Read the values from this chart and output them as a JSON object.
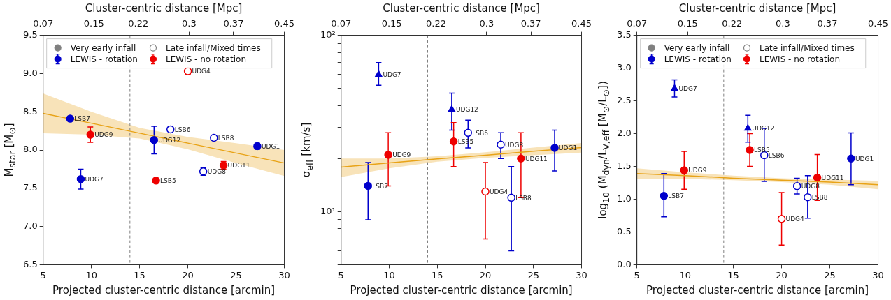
{
  "chart_data": [
    {
      "type": "scatter",
      "xlabel": "Projected cluster-centric distance [arcmin]",
      "x2label": "Cluster-centric distance [Mpc]",
      "ylabel": "M$_{star}$ [M$_{⊙}$]",
      "xlim": [
        5,
        30
      ],
      "xticks": [
        5,
        10,
        15,
        20,
        25,
        30
      ],
      "x2lim": [
        0.07,
        0.45
      ],
      "x2ticks": [
        0.07,
        0.15,
        0.22,
        0.3,
        0.37,
        0.45
      ],
      "ylim": [
        6.5,
        9.5
      ],
      "yticks": [
        6.5,
        {
          "value": 7,
          "label": "7.0"
        },
        7.5,
        {
          "value": 8,
          "label": "8.0"
        },
        8.5,
        {
          "value": 9,
          "label": "9.0"
        },
        9.5
      ],
      "legend": "top left",
      "series": [
        {
          "name": "Very early infall",
          "color": "#808080"
        },
        {
          "name": "LEWIS - rotation",
          "color": "#0000cc",
          "marker": "circle",
          "x": [
            7.8,
            8.9,
            16.5,
            27.2
          ],
          "values": [
            8.41,
            7.62,
            8.13,
            8.05
          ],
          "errors": [
            null,
            0.13,
            0.18,
            0.04
          ]
        },
        {
          "name": "Late infall/Mixed times",
          "color": "#808080",
          "marker": "circle-open"
        },
        {
          "name": "LEWIS - no rotation",
          "color": "#ee0000",
          "marker": "circle",
          "x": [
            9.9,
            16.7,
            23.7
          ],
          "values": [
            8.2,
            7.6,
            7.8
          ],
          "errors": [
            0.1,
            null,
            0.05
          ]
        },
        {
          "color": "#0000cc",
          "marker": "circle-open",
          "x": [
            18.2,
            21.6,
            22.7
          ],
          "values": [
            8.27,
            7.72,
            8.16
          ],
          "errors": [
            null,
            0.05,
            null
          ]
        },
        {
          "color": "#ee0000",
          "marker": "circle-open",
          "x": [
            20.0
          ],
          "values": [
            9.03
          ],
          "errors": [
            0.04
          ]
        },
        {
          "type": "line",
          "color": "#e8a317",
          "marker": "none",
          "x": [
            5,
            10,
            15,
            20,
            25,
            30
          ],
          "values": [
            8.48,
            8.35,
            8.22,
            8.09,
            7.96,
            7.83
          ],
          "lower": [
            8.22,
            8.2,
            8.15,
            8.01,
            7.83,
            7.66
          ],
          "upper": [
            8.74,
            8.5,
            8.29,
            8.17,
            8.09,
            8.0
          ]
        }
      ],
      "ref_lines": [
        {
          "axis": "x",
          "value": 14,
          "color": "#808080",
          "line_style": "dashed"
        }
      ],
      "annotations": [
        {
          "text": "LSB7",
          "x": 7.8,
          "y": 8.41
        },
        {
          "text": "UDG7",
          "x": 8.9,
          "y": 7.62
        },
        {
          "text": "UDG9",
          "x": 9.9,
          "y": 8.2
        },
        {
          "text": "UDG12",
          "x": 16.5,
          "y": 8.13
        },
        {
          "text": "LSB5",
          "x": 16.7,
          "y": 7.6
        },
        {
          "text": "LSB6",
          "x": 18.2,
          "y": 8.27
        },
        {
          "text": "UDG4",
          "x": 20.0,
          "y": 9.03
        },
        {
          "text": "UDG8",
          "x": 21.6,
          "y": 7.72
        },
        {
          "text": "LSB8",
          "x": 22.7,
          "y": 8.16
        },
        {
          "text": "UDG11",
          "x": 23.7,
          "y": 7.8
        },
        {
          "text": "UDG1",
          "x": 27.2,
          "y": 8.05
        }
      ]
    },
    {
      "type": "scatter",
      "xlabel": "Projected cluster-centric distance [arcmin]",
      "x2label": "Cluster-centric distance [Mpc]",
      "ylabel": "σ$_{eff}$ [km/s]",
      "log": "y",
      "xlim": [
        5,
        30
      ],
      "xticks": [
        5,
        10,
        15,
        20,
        25,
        30
      ],
      "x2lim": [
        0.07,
        0.45
      ],
      "x2ticks": [
        0.07,
        0.15,
        0.22,
        0.3,
        0.37,
        0.45
      ],
      "ylim": [
        5,
        100
      ],
      "yticks": [
        {
          "value": 5,
          "label": null
        },
        {
          "value": 6,
          "label": null
        },
        {
          "value": 7,
          "label": null
        },
        {
          "value": 8,
          "label": null
        },
        {
          "value": 9,
          "label": null
        },
        {
          "value": 10,
          "label": "10¹"
        },
        {
          "value": 20,
          "label": null
        },
        {
          "value": 30,
          "label": null
        },
        {
          "value": 40,
          "label": null
        },
        {
          "value": 50,
          "label": null
        },
        {
          "value": 60,
          "label": null
        },
        {
          "value": 70,
          "label": null
        },
        {
          "value": 80,
          "label": null
        },
        {
          "value": 90,
          "label": null
        },
        {
          "value": 100,
          "label": "10²"
        }
      ],
      "series": [
        {
          "color": "#0000cc",
          "marker": "circle",
          "x": [
            7.8,
            27.2
          ],
          "values": [
            14,
            23
          ],
          "errors": [
            [
              9,
              19
            ],
            [
              17,
              29
            ]
          ]
        },
        {
          "color": "#0000cc",
          "marker": "triangle",
          "x": [
            8.9,
            16.5
          ],
          "values": [
            60,
            38
          ],
          "errors": [
            [
              52,
              70
            ],
            [
              29,
              47
            ]
          ]
        },
        {
          "color": "#ee0000",
          "marker": "circle",
          "x": [
            9.9,
            16.7,
            23.7
          ],
          "values": [
            21,
            25,
            20
          ],
          "errors": [
            [
              14,
              28
            ],
            [
              18,
              32
            ],
            [
              12,
              28
            ]
          ]
        },
        {
          "color": "#0000cc",
          "marker": "circle-open",
          "x": [
            18.2,
            21.6,
            22.7
          ],
          "values": [
            28,
            24,
            12
          ],
          "errors": [
            [
              23,
              33
            ],
            [
              20,
              28
            ],
            [
              6,
              18
            ]
          ]
        },
        {
          "color": "#ee0000",
          "marker": "circle-open",
          "x": [
            20.0
          ],
          "values": [
            13
          ],
          "errors": [
            [
              7,
              19
            ]
          ]
        },
        {
          "type": "line",
          "color": "#e8a317",
          "marker": "none",
          "x": [
            5,
            10,
            15,
            20,
            25,
            30
          ],
          "values": [
            17.9,
            18.9,
            19.9,
            20.9,
            22,
            23.1
          ],
          "lower": [
            15.7,
            17.6,
            19.2,
            20.2,
            20.9,
            21.6
          ],
          "upper": [
            20,
            20,
            20.6,
            21.7,
            23.1,
            24.5
          ]
        }
      ],
      "ref_lines": [
        {
          "axis": "x",
          "value": 14,
          "color": "#808080",
          "line_style": "dashed"
        }
      ],
      "annotations": [
        {
          "text": "LSB7",
          "x": 7.8,
          "y": 14
        },
        {
          "text": "UDG7",
          "x": 8.9,
          "y": 60
        },
        {
          "text": "UDG9",
          "x": 9.9,
          "y": 21
        },
        {
          "text": "UDG12",
          "x": 16.5,
          "y": 38
        },
        {
          "text": "LSB5",
          "x": 16.7,
          "y": 25
        },
        {
          "text": "LSB6",
          "x": 18.2,
          "y": 28
        },
        {
          "text": "UDG4",
          "x": 20.0,
          "y": 13
        },
        {
          "text": "UDG8",
          "x": 21.6,
          "y": 24
        },
        {
          "text": "LSB8",
          "x": 22.7,
          "y": 12
        },
        {
          "text": "UDG11",
          "x": 23.7,
          "y": 20
        },
        {
          "text": "UDG1",
          "x": 27.2,
          "y": 23
        }
      ]
    },
    {
      "type": "scatter",
      "xlabel": "Projected cluster-centric distance [arcmin]",
      "x2label": "Cluster-centric distance [Mpc]",
      "ylabel": "log$_{10}$ (M$_{dyn}$/L$_{V,eff}$ [M$_{⊙}$/L$_{⊙}$])",
      "xlim": [
        5,
        30
      ],
      "xticks": [
        5,
        10,
        15,
        20,
        25,
        30
      ],
      "x2lim": [
        0.07,
        0.45
      ],
      "x2ticks": [
        0.07,
        0.15,
        0.22,
        0.3,
        0.37,
        0.45
      ],
      "ylim": [
        0,
        3.5
      ],
      "yticks": [
        {
          "value": 0,
          "label": "0.0"
        },
        0.5,
        {
          "value": 1,
          "label": "1.0"
        },
        1.5,
        {
          "value": 2,
          "label": "2.0"
        },
        2.5,
        {
          "value": 3,
          "label": "3.0"
        },
        3.5
      ],
      "legend": "top left",
      "series": [
        {
          "name": "Very early infall",
          "color": "#808080"
        },
        {
          "name": "LEWIS - rotation",
          "color": "#0000cc",
          "marker": "circle",
          "x": [
            7.8,
            27.2
          ],
          "values": [
            1.05,
            1.62
          ],
          "errors": [
            [
              0.73,
              1.39
            ],
            [
              1.22,
              2.01
            ]
          ]
        },
        {
          "name": "Late infall/Mixed times",
          "color": "#808080",
          "marker": "circle-open"
        },
        {
          "name": "LEWIS - no rotation",
          "color": "#ee0000",
          "marker": "circle",
          "x": [
            9.9,
            16.7,
            23.7
          ],
          "values": [
            1.44,
            1.75,
            1.33
          ],
          "errors": [
            [
              1.15,
              1.73
            ],
            [
              1.5,
              2.0
            ],
            [
              0.98,
              1.68
            ]
          ]
        },
        {
          "color": "#0000cc",
          "marker": "triangle",
          "x": [
            8.9,
            16.5
          ],
          "values": [
            2.69,
            2.08
          ],
          "errors": [
            [
              2.56,
              2.82
            ],
            [
              1.87,
              2.28
            ]
          ]
        },
        {
          "color": "#0000cc",
          "marker": "circle-open",
          "x": [
            18.2,
            21.6,
            22.7
          ],
          "values": [
            1.67,
            1.2,
            1.03
          ],
          "errors": [
            [
              1.27,
              2.08
            ],
            [
              1.08,
              1.32
            ],
            [
              0.71,
              1.36
            ]
          ]
        },
        {
          "color": "#ee0000",
          "marker": "circle-open",
          "x": [
            20.0
          ],
          "values": [
            0.7
          ],
          "errors": [
            [
              0.3,
              1.1
            ]
          ]
        },
        {
          "type": "line",
          "color": "#e8a317",
          "marker": "none",
          "x": [
            5,
            10,
            15,
            20,
            25,
            30
          ],
          "values": [
            1.39,
            1.36,
            1.32,
            1.29,
            1.26,
            1.22
          ],
          "lower": [
            1.31,
            1.31,
            1.29,
            1.26,
            1.22,
            1.15
          ],
          "upper": [
            1.47,
            1.41,
            1.36,
            1.32,
            1.3,
            1.28
          ]
        }
      ],
      "ref_lines": [
        {
          "axis": "x",
          "value": 14,
          "color": "#808080",
          "line_style": "dashed"
        }
      ],
      "annotations": [
        {
          "text": "LSB7",
          "x": 7.8,
          "y": 1.05
        },
        {
          "text": "UDG7",
          "x": 8.9,
          "y": 2.69
        },
        {
          "text": "UDG9",
          "x": 9.9,
          "y": 1.44
        },
        {
          "text": "UDG12",
          "x": 16.5,
          "y": 2.08
        },
        {
          "text": "LSB5",
          "x": 16.7,
          "y": 1.75
        },
        {
          "text": "LSB6",
          "x": 18.2,
          "y": 1.67
        },
        {
          "text": "UDG4",
          "x": 20.0,
          "y": 0.7
        },
        {
          "text": "UDG8",
          "x": 21.6,
          "y": 1.2
        },
        {
          "text": "LSB8",
          "x": 22.7,
          "y": 1.03
        },
        {
          "text": "UDG11",
          "x": 23.7,
          "y": 1.33
        },
        {
          "text": "UDG1",
          "x": 27.2,
          "y": 1.62
        }
      ]
    }
  ]
}
